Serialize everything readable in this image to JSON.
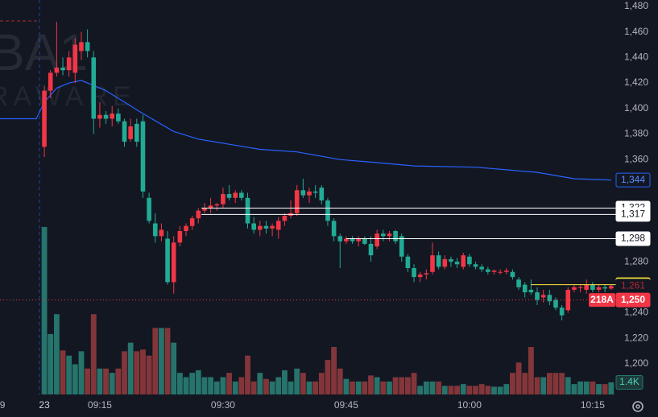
{
  "chart_data": {
    "type": "candlestick",
    "watermark": [
      "BA1",
      "RAWARE"
    ],
    "xlim": [
      -7.2,
      93.2
    ],
    "xticks": [
      {
        "value": -6.8,
        "label": "9"
      },
      {
        "value": 0,
        "label": "23"
      },
      {
        "value": 9,
        "label": "09:15"
      },
      {
        "value": 29,
        "label": "09:30"
      },
      {
        "value": 49,
        "label": "09:45"
      },
      {
        "value": 69,
        "label": "10:00"
      },
      {
        "value": 89,
        "label": "10:15"
      }
    ],
    "ylim": [
      1176,
      1485
    ],
    "yticks": [
      {
        "value": 1480,
        "label": "1,480"
      },
      {
        "value": 1460,
        "label": "1,460"
      },
      {
        "value": 1440,
        "label": "1,440"
      },
      {
        "value": 1420,
        "label": "1,420"
      },
      {
        "value": 1400,
        "label": "1,400"
      },
      {
        "value": 1380,
        "label": "1,380"
      },
      {
        "value": 1360,
        "label": "1,360"
      },
      {
        "value": 1280,
        "label": "1,280"
      },
      {
        "value": 1240,
        "label": "1,240"
      },
      {
        "value": 1220,
        "label": "1,220"
      },
      {
        "value": 1200,
        "label": "1,200"
      }
    ],
    "vlim": [
      0,
      22000
    ],
    "up_color": "#f23645",
    "down_color": "#22ab94",
    "volume_up_color": "#26746c",
    "volume_down_color": "#83363a",
    "open": [
      1370,
      1414,
      1428,
      1432,
      1430,
      1428,
      1445,
      1452,
      1440,
      1392,
      1395,
      1392,
      1396,
      1390,
      1376,
      1388,
      1390,
      1330,
      1310,
      1300,
      1298,
      1264,
      1295,
      1304,
      1308,
      1314,
      1320,
      1322,
      1324,
      1325,
      1333,
      1330,
      1334,
      1330,
      1310,
      1305,
      1308,
      1306,
      1305,
      1312,
      1316,
      1318,
      1336,
      1332,
      1335,
      1338,
      1328,
      1312,
      1300,
      1296,
      1298,
      1296,
      1298,
      1294,
      1292,
      1302,
      1300,
      1304,
      1300,
      1284,
      1275,
      1268,
      1270,
      1272,
      1285,
      1276,
      1282,
      1280,
      1276,
      1284,
      1278,
      1276,
      1274,
      1272,
      1272,
      1272,
      1272,
      1266,
      1262,
      1258,
      1256,
      1252,
      1254,
      1250,
      1244,
      1242,
      1258,
      1260,
      1258,
      1262,
      1258,
      1260,
      1259
    ],
    "high": [
      1418,
      1430,
      1468,
      1440,
      1445,
      1455,
      1460,
      1462,
      1445,
      1405,
      1398,
      1402,
      1400,
      1392,
      1392,
      1392,
      1395,
      1334,
      1318,
      1310,
      1304,
      1300,
      1308,
      1310,
      1316,
      1322,
      1326,
      1330,
      1326,
      1338,
      1340,
      1336,
      1336,
      1334,
      1315,
      1312,
      1312,
      1310,
      1315,
      1318,
      1328,
      1340,
      1345,
      1338,
      1340,
      1340,
      1330,
      1314,
      1302,
      1300,
      1300,
      1300,
      1300,
      1300,
      1305,
      1305,
      1304,
      1305,
      1302,
      1286,
      1278,
      1272,
      1274,
      1295,
      1288,
      1285,
      1284,
      1283,
      1287,
      1286,
      1280,
      1278,
      1276,
      1274,
      1274,
      1275,
      1274,
      1268,
      1264,
      1266,
      1260,
      1258,
      1258,
      1252,
      1246,
      1260,
      1262,
      1262,
      1266,
      1264,
      1262,
      1262,
      1262
    ],
    "low": [
      1362,
      1408,
      1425,
      1426,
      1425,
      1420,
      1438,
      1440,
      1380,
      1385,
      1388,
      1386,
      1388,
      1370,
      1374,
      1370,
      1330,
      1310,
      1295,
      1296,
      1262,
      1255,
      1292,
      1300,
      1305,
      1310,
      1318,
      1318,
      1320,
      1322,
      1328,
      1326,
      1328,
      1306,
      1302,
      1300,
      1302,
      1300,
      1298,
      1308,
      1314,
      1316,
      1330,
      1326,
      1330,
      1325,
      1308,
      1296,
      1275,
      1294,
      1294,
      1292,
      1293,
      1280,
      1290,
      1296,
      1296,
      1294,
      1280,
      1272,
      1264,
      1264,
      1266,
      1270,
      1274,
      1274,
      1276,
      1275,
      1274,
      1276,
      1274,
      1272,
      1270,
      1270,
      1270,
      1270,
      1266,
      1258,
      1252,
      1254,
      1246,
      1248,
      1246,
      1242,
      1234,
      1240,
      1256,
      1256,
      1255,
      1256,
      1256,
      1256,
      1258
    ],
    "close": [
      1414,
      1428,
      1432,
      1430,
      1440,
      1450,
      1452,
      1445,
      1392,
      1395,
      1392,
      1396,
      1390,
      1374,
      1386,
      1374,
      1335,
      1312,
      1300,
      1305,
      1264,
      1295,
      1304,
      1308,
      1314,
      1320,
      1322,
      1324,
      1325,
      1333,
      1330,
      1334,
      1330,
      1310,
      1305,
      1308,
      1306,
      1308,
      1312,
      1316,
      1318,
      1336,
      1332,
      1335,
      1334,
      1328,
      1312,
      1300,
      1296,
      1298,
      1296,
      1298,
      1294,
      1285,
      1302,
      1300,
      1302,
      1296,
      1284,
      1275,
      1268,
      1270,
      1271,
      1285,
      1276,
      1282,
      1280,
      1278,
      1285,
      1278,
      1276,
      1274,
      1272,
      1273,
      1272,
      1273,
      1268,
      1260,
      1256,
      1256,
      1250,
      1254,
      1249,
      1244,
      1238,
      1258,
      1260,
      1260,
      1262,
      1258,
      1260,
      1259,
      1261
    ],
    "volume": [
      19400,
      7000,
      9300,
      5100,
      4500,
      3500,
      5000,
      3000,
      9300,
      3000,
      3000,
      2500,
      3000,
      5000,
      6000,
      5000,
      5200,
      4500,
      7700,
      7700,
      7700,
      6000,
      2500,
      2000,
      2500,
      2800,
      2000,
      2000,
      1500,
      2000,
      2500,
      1500,
      2000,
      4500,
      1500,
      2500,
      1800,
      1500,
      2000,
      2800,
      1500,
      3000,
      2500,
      1500,
      1500,
      2500,
      4000,
      5500,
      3000,
      1800,
      1500,
      1500,
      1500,
      2200,
      2000,
      1500,
      1500,
      2000,
      2000,
      2000,
      2500,
      1000,
      1500,
      1500,
      1500,
      1000,
      1000,
      1000,
      1200,
      1000,
      1000,
      1200,
      1000,
      900,
      900,
      1200,
      2500,
      3700,
      2500,
      5500,
      2000,
      2000,
      2500,
      2500,
      2500,
      2000,
      1200,
      1500,
      1500,
      1500,
      1200,
      1200,
      1400
    ],
    "volume_last_label": "1.4K",
    "vwap": {
      "color": "#2962ff",
      "label": "1,344",
      "x": [
        -7.2,
        -1.3,
        0,
        2,
        4,
        6,
        8,
        10,
        12,
        16,
        21,
        25,
        30,
        35,
        41,
        48,
        53,
        60,
        70,
        80,
        86,
        92
      ],
      "values": [
        1392,
        1392,
        1405,
        1416,
        1420,
        1422,
        1418,
        1414,
        1408,
        1396,
        1382,
        1376,
        1372,
        1368,
        1366,
        1360,
        1358,
        1355,
        1354,
        1350,
        1345,
        1344
      ]
    },
    "price_lines": [
      {
        "value": 1322,
        "label": "1,322",
        "from": 25.5,
        "color": "#ffffff",
        "text_color": "#131722"
      },
      {
        "value": 1317,
        "label": "1,317",
        "from": 25.5,
        "color": "#ffffff",
        "text_color": "#131722"
      },
      {
        "value": 1298,
        "label": "1,298",
        "from": 49,
        "color": "#ffffff",
        "text_color": "#131722"
      },
      {
        "value": 1262,
        "label": "1,262",
        "from": 79,
        "color": "#ffeb3b",
        "text_color": "#131722"
      }
    ],
    "marker_price": {
      "value": 1261,
      "label": "1,261",
      "color": "#b22833"
    },
    "last_price": {
      "value": 1250,
      "label": "1,250",
      "tag": "218A",
      "color": "#f23645"
    }
  }
}
